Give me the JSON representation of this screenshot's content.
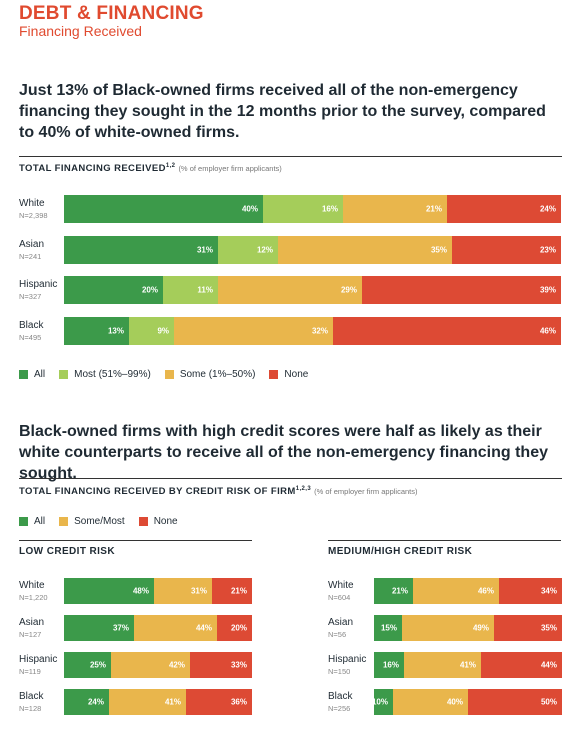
{
  "header": {
    "title": "DEBT & FINANCING",
    "subtitle": "Financing Received"
  },
  "colors": {
    "all": "#3c9a4a",
    "most": "#a5cd5a",
    "some": "#e9b64c",
    "none": "#dd4a34"
  },
  "headline1": "Just 13% of Black-owned firms received all of the non-emergency financing they sought in the 12 months prior to the survey, compared to 40% of white-owned firms.",
  "headline2": "Black-owned firms with high credit scores were half as likely as their white counterparts to receive all of the non-emergency financing they sought.",
  "chart_data": [
    {
      "type": "bar",
      "orientation": "horizontal",
      "stacked": true,
      "title": "TOTAL FINANCING RECEIVED",
      "title_sup": "1,2",
      "note": "(% of employer firm applicants)",
      "categories": [
        "White",
        "Asian",
        "Hispanic",
        "Black"
      ],
      "n_labels": [
        "N=2,398",
        "N=241",
        "N=327",
        "N=495"
      ],
      "series": [
        {
          "name": "All",
          "color": "#3c9a4a",
          "values": [
            40,
            31,
            20,
            13
          ]
        },
        {
          "name": "Most (51%–99%)",
          "color": "#a5cd5a",
          "values": [
            16,
            12,
            11,
            9
          ]
        },
        {
          "name": "Some (1%–50%)",
          "color": "#e9b64c",
          "values": [
            21,
            35,
            29,
            32
          ]
        },
        {
          "name": "None",
          "color": "#dd4a34",
          "values": [
            24,
            23,
            39,
            46
          ]
        }
      ],
      "xlim": [
        0,
        100
      ],
      "legend": "bottom"
    },
    {
      "type": "bar",
      "orientation": "horizontal",
      "stacked": true,
      "title": "TOTAL FINANCING RECEIVED BY CREDIT RISK OF FIRM",
      "title_sup": "1,2,3",
      "note": "(% of employer firm applicants)",
      "panel_title": "LOW CREDIT RISK",
      "categories": [
        "White",
        "Asian",
        "Hispanic",
        "Black"
      ],
      "n_labels": [
        "N=1,220",
        "N=127",
        "N=119",
        "N=128"
      ],
      "series": [
        {
          "name": "All",
          "color": "#3c9a4a",
          "values": [
            48,
            37,
            25,
            24
          ]
        },
        {
          "name": "Some/Most",
          "color": "#e9b64c",
          "values": [
            31,
            44,
            42,
            41
          ]
        },
        {
          "name": "None",
          "color": "#dd4a34",
          "values": [
            21,
            20,
            33,
            36
          ]
        }
      ],
      "xlim": [
        0,
        100
      ],
      "legend": "top"
    },
    {
      "type": "bar",
      "orientation": "horizontal",
      "stacked": true,
      "panel_title": "MEDIUM/HIGH CREDIT RISK",
      "categories": [
        "White",
        "Asian",
        "Hispanic",
        "Black"
      ],
      "n_labels": [
        "N=604",
        "N=56",
        "N=150",
        "N=256"
      ],
      "series": [
        {
          "name": "All",
          "color": "#3c9a4a",
          "values": [
            21,
            15,
            16,
            10
          ]
        },
        {
          "name": "Some/Most",
          "color": "#e9b64c",
          "values": [
            46,
            49,
            41,
            40
          ]
        },
        {
          "name": "None",
          "color": "#dd4a34",
          "values": [
            34,
            35,
            44,
            50
          ]
        }
      ],
      "xlim": [
        0,
        100
      ]
    }
  ]
}
